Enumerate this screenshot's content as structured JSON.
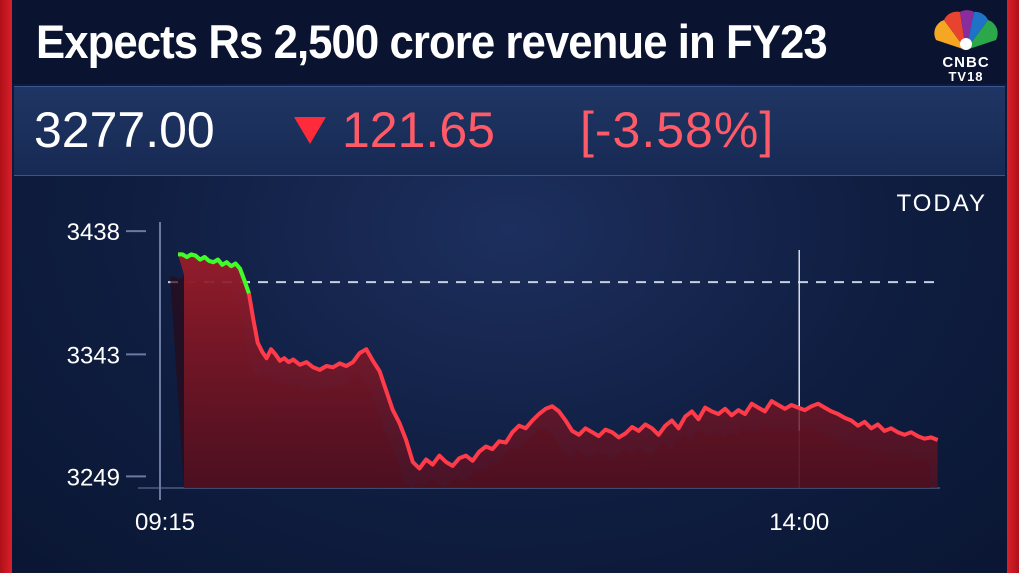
{
  "headline": "Expects Rs 2,500 crore revenue in FY23",
  "brand": {
    "line1": "CNBC",
    "line2": "TV18"
  },
  "quote": {
    "price": "3277.00",
    "change": "121.65",
    "change_pct": "[-3.58%]",
    "direction": "down"
  },
  "period_label": "TODAY",
  "colors": {
    "down": "#ff3b4a",
    "up": "#3cff2a",
    "area": "#8a1a26",
    "background": "#0f1d40"
  },
  "chart_data": {
    "type": "area",
    "ylim": [
      3240,
      3445
    ],
    "yticks": [
      "3438",
      "3343",
      "3249"
    ],
    "ytick_values": [
      3438,
      3343,
      3249
    ],
    "xticks": [
      "09:15",
      "14:00"
    ],
    "xtick_values": [
      0,
      285
    ],
    "session_minutes": 375,
    "reference_line": 3398.65,
    "grid": false,
    "series": [
      {
        "x": [
          0,
          2,
          4,
          6,
          8,
          10,
          12,
          14,
          16,
          18,
          20,
          22,
          24,
          26,
          28,
          30,
          32,
          34,
          36,
          38,
          40,
          42,
          44,
          46,
          48,
          50,
          52,
          55,
          58,
          61,
          64,
          67,
          70,
          73,
          76,
          79,
          82,
          85,
          88,
          91,
          94,
          97,
          100,
          103,
          106,
          109,
          112,
          115,
          118,
          121,
          124,
          127,
          130,
          133,
          136,
          139,
          142,
          145,
          148,
          151,
          154,
          157,
          160,
          163,
          166,
          169,
          172,
          175,
          178,
          181,
          184,
          187,
          190,
          193,
          196,
          199,
          202,
          205,
          208,
          211,
          214,
          217,
          220,
          223,
          226,
          229,
          232,
          235,
          238,
          241,
          244,
          247,
          250,
          253,
          256,
          259,
          262,
          265,
          268,
          271,
          274,
          277,
          280,
          283,
          286,
          289,
          292,
          295,
          298,
          301,
          304,
          307,
          310,
          313,
          316,
          319,
          322,
          325,
          328,
          331,
          334,
          337,
          340,
          343
        ],
        "y": [
          3420,
          3420,
          3418,
          3420,
          3419,
          3416,
          3418,
          3415,
          3414,
          3416,
          3412,
          3414,
          3411,
          3413,
          3409,
          3400,
          3390,
          3370,
          3352,
          3345,
          3340,
          3347,
          3343,
          3338,
          3340,
          3337,
          3339,
          3335,
          3337,
          3333,
          3331,
          3334,
          3333,
          3336,
          3334,
          3337,
          3344,
          3347,
          3338,
          3330,
          3315,
          3300,
          3290,
          3277,
          3260,
          3255,
          3262,
          3258,
          3265,
          3260,
          3257,
          3263,
          3265,
          3261,
          3268,
          3272,
          3270,
          3276,
          3275,
          3283,
          3288,
          3286,
          3292,
          3297,
          3301,
          3303,
          3299,
          3292,
          3284,
          3281,
          3286,
          3283,
          3280,
          3285,
          3283,
          3279,
          3282,
          3287,
          3284,
          3289,
          3286,
          3281,
          3288,
          3292,
          3286,
          3295,
          3299,
          3293,
          3302,
          3299,
          3297,
          3301,
          3296,
          3300,
          3297,
          3305,
          3302,
          3299,
          3307,
          3304,
          3301,
          3304,
          3302,
          3300,
          3303,
          3305,
          3302,
          3299,
          3297,
          3294,
          3292,
          3288,
          3291,
          3286,
          3289,
          3284,
          3286,
          3283,
          3281,
          3283,
          3280,
          3278,
          3279,
          3277
        ]
      }
    ]
  }
}
